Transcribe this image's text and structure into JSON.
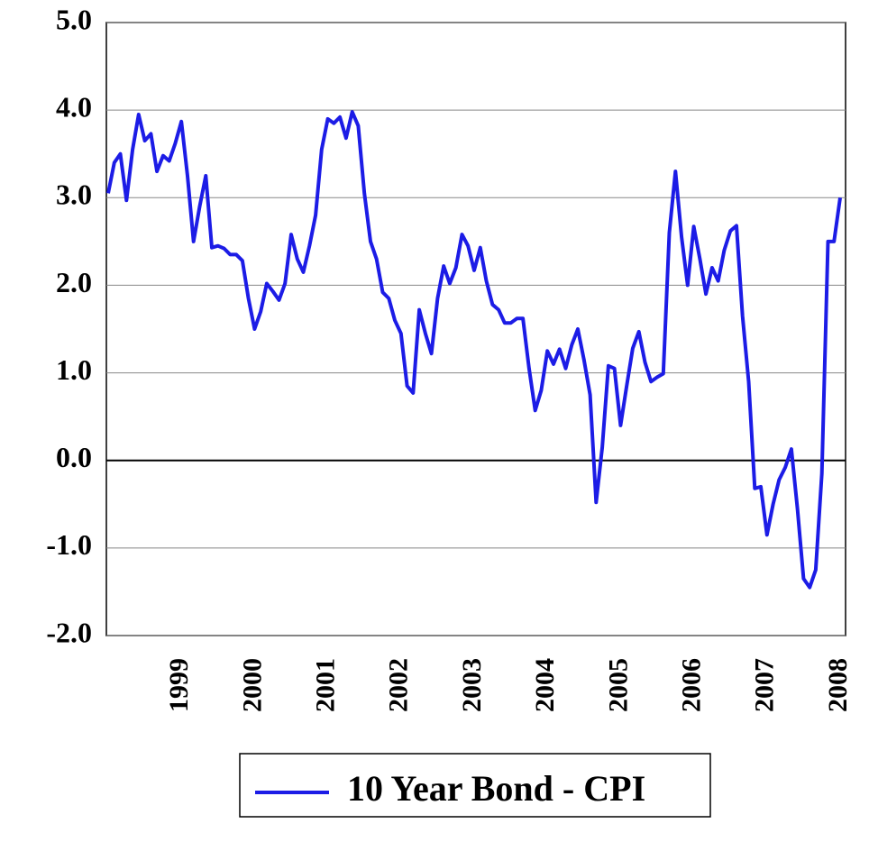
{
  "chart_data": {
    "type": "line",
    "categories": [
      null,
      null,
      null,
      null,
      null,
      null,
      null,
      null,
      null,
      null,
      null,
      null,
      "1999",
      null,
      null,
      null,
      null,
      null,
      null,
      null,
      null,
      null,
      null,
      null,
      "2000",
      null,
      null,
      null,
      null,
      null,
      null,
      null,
      null,
      null,
      null,
      null,
      "2001",
      null,
      null,
      null,
      null,
      null,
      null,
      null,
      null,
      null,
      null,
      null,
      "2002",
      null,
      null,
      null,
      null,
      null,
      null,
      null,
      null,
      null,
      null,
      null,
      "2003",
      null,
      null,
      null,
      null,
      null,
      null,
      null,
      null,
      null,
      null,
      null,
      "2004",
      null,
      null,
      null,
      null,
      null,
      null,
      null,
      null,
      null,
      null,
      null,
      "2005",
      null,
      null,
      null,
      null,
      null,
      null,
      null,
      null,
      null,
      null,
      null,
      "2006",
      null,
      null,
      null,
      null,
      null,
      null,
      null,
      null,
      null,
      null,
      null,
      "2007",
      null,
      null,
      null,
      null,
      null,
      null,
      null,
      null,
      null,
      null,
      null,
      "2008"
    ],
    "series": [
      {
        "name": "10 Year Bond - CPI",
        "color": "#1c1ce6",
        "values": [
          3.05,
          3.4,
          3.5,
          2.97,
          3.55,
          3.95,
          3.65,
          3.73,
          3.3,
          3.48,
          3.42,
          3.62,
          3.87,
          3.25,
          2.5,
          2.9,
          3.25,
          2.43,
          2.45,
          2.42,
          2.35,
          2.35,
          2.28,
          1.85,
          1.5,
          1.7,
          2.02,
          1.93,
          1.83,
          2.02,
          2.58,
          2.3,
          2.15,
          2.45,
          2.8,
          3.55,
          3.9,
          3.85,
          3.92,
          3.68,
          3.98,
          3.82,
          3.05,
          2.5,
          2.3,
          1.92,
          1.85,
          1.6,
          1.45,
          0.85,
          0.77,
          1.72,
          1.45,
          1.22,
          1.85,
          2.22,
          2.02,
          2.2,
          2.58,
          2.45,
          2.17,
          2.43,
          2.05,
          1.78,
          1.72,
          1.57,
          1.57,
          1.62,
          1.62,
          1.05,
          0.57,
          0.8,
          1.25,
          1.1,
          1.27,
          1.05,
          1.32,
          1.5,
          1.15,
          0.75,
          -0.48,
          0.15,
          1.08,
          1.05,
          0.4,
          0.85,
          1.28,
          1.47,
          1.12,
          0.9,
          0.95,
          0.99,
          2.6,
          3.3,
          2.55,
          2.0,
          2.67,
          2.3,
          1.9,
          2.2,
          2.05,
          2.4,
          2.62,
          2.68,
          1.65,
          0.9,
          -0.32,
          -0.3,
          -0.85,
          -0.5,
          -0.22,
          -0.08,
          0.13,
          -0.55,
          -1.35,
          -1.45,
          -1.25,
          -0.15,
          2.5,
          2.5,
          3.0
        ]
      }
    ],
    "ylim": [
      -2,
      5
    ],
    "yticks": [
      {
        "value": -2,
        "label": "-2.0"
      },
      {
        "value": -1,
        "label": "-1.0"
      },
      {
        "value": 0,
        "label": "0.0"
      },
      {
        "value": 1,
        "label": "1.0"
      },
      {
        "value": 2,
        "label": "2.0"
      },
      {
        "value": 3,
        "label": "3.0"
      },
      {
        "value": 4,
        "label": "4.0"
      },
      {
        "value": 5,
        "label": "5.0"
      }
    ],
    "grid": true,
    "legend": "bottom"
  }
}
